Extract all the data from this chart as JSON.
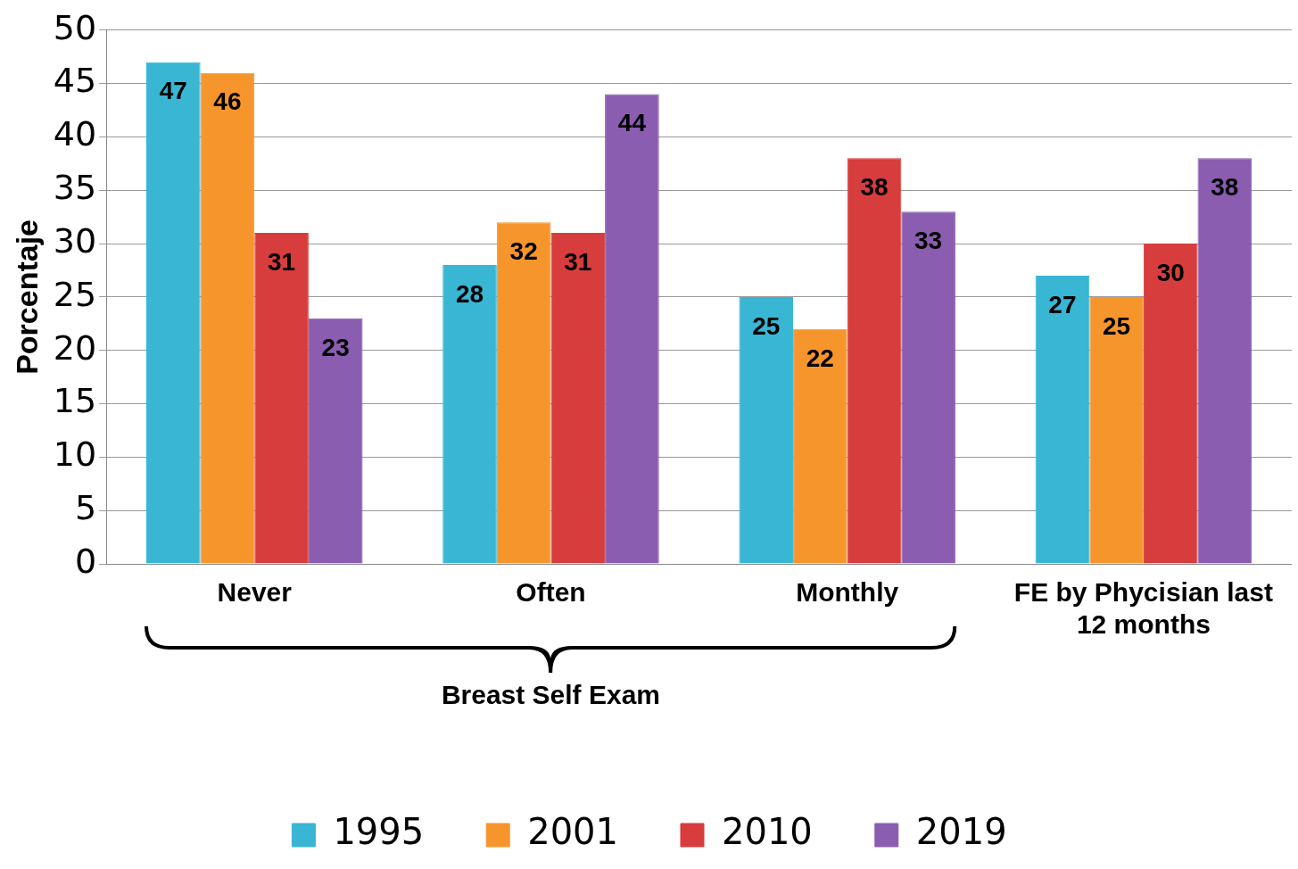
{
  "chart_data": {
    "type": "bar",
    "ylabel": "Porcentaje",
    "categories": [
      "Never",
      "Often",
      "Monthly",
      "FE by Phycisian last 12 months"
    ],
    "series": [
      {
        "name": "1995",
        "color": "#38b6d4",
        "values": [
          47,
          28,
          25,
          27
        ]
      },
      {
        "name": "2001",
        "color": "#f7952d",
        "values": [
          46,
          32,
          22,
          25
        ]
      },
      {
        "name": "2010",
        "color": "#d63d3c",
        "values": [
          31,
          31,
          38,
          30
        ]
      },
      {
        "name": "2019",
        "color": "#8a5db0",
        "values": [
          23,
          44,
          33,
          38
        ]
      }
    ],
    "ylim": [
      0,
      50
    ],
    "yticks": [
      0,
      5,
      10,
      15,
      20,
      25,
      30,
      35,
      40,
      45,
      50
    ],
    "grid": "y",
    "legend": "bottom",
    "data_labels": true,
    "annotations": [
      "Breast Self Exam"
    ]
  }
}
